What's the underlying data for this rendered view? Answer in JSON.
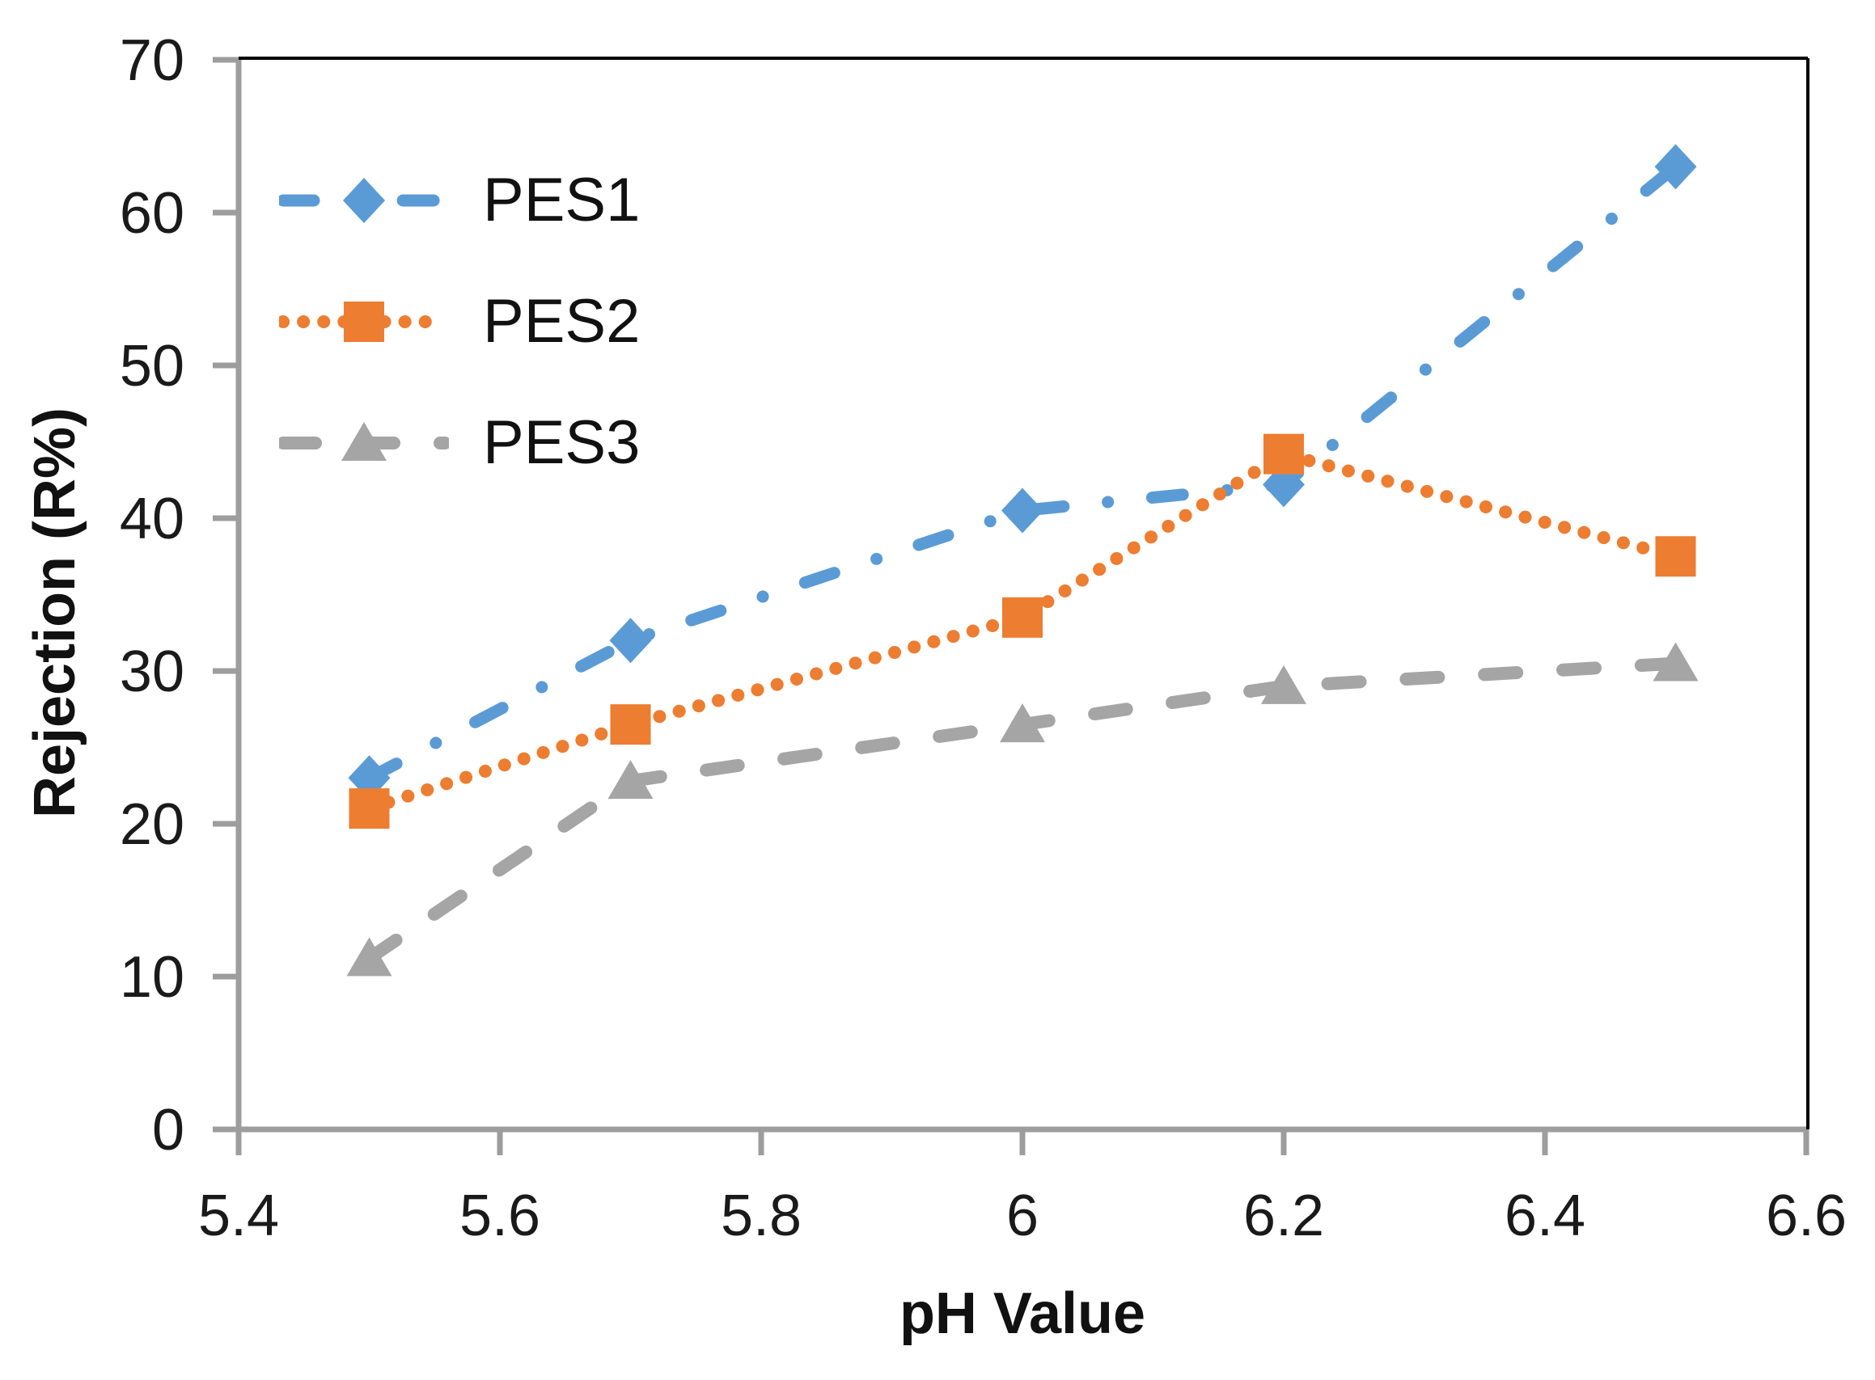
{
  "chart_data": {
    "type": "line",
    "title": "",
    "xlabel": "pH Value",
    "ylabel": "Rejection (R%)",
    "x": [
      5.5,
      5.7,
      6.0,
      6.2,
      6.5
    ],
    "xlim": [
      5.4,
      6.6
    ],
    "ylim": [
      0,
      70
    ],
    "x_tick_values": [
      5.4,
      5.6,
      5.8,
      6.0,
      6.2,
      6.4,
      6.6
    ],
    "x_tick_labels": [
      "5.4",
      "5.6",
      "5.8",
      "6",
      "6.2",
      "6.4",
      "6.6"
    ],
    "y_tick_values": [
      0,
      10,
      20,
      30,
      40,
      50,
      60,
      70
    ],
    "y_tick_labels": [
      "0",
      "10",
      "20",
      "30",
      "40",
      "50",
      "60",
      "70"
    ],
    "grid": false,
    "legend_position": "inside-top-left",
    "series": [
      {
        "name": "PES1",
        "color": "#5B9BD5",
        "marker": "diamond",
        "line_style": "dash-dot",
        "values": [
          23.0,
          32.0,
          40.5,
          42.2,
          63.0
        ]
      },
      {
        "name": "PES2",
        "color": "#ED7D31",
        "marker": "square",
        "line_style": "dotted",
        "values": [
          21.0,
          26.5,
          33.5,
          44.2,
          37.5
        ]
      },
      {
        "name": "PES3",
        "color": "#A5A5A5",
        "marker": "triangle",
        "line_style": "dashed",
        "values": [
          11.2,
          22.8,
          26.5,
          29.0,
          30.5
        ]
      }
    ],
    "axis_color": "#9D9D9D",
    "border_color": "#000000",
    "text_color": "#1A1A1A"
  }
}
